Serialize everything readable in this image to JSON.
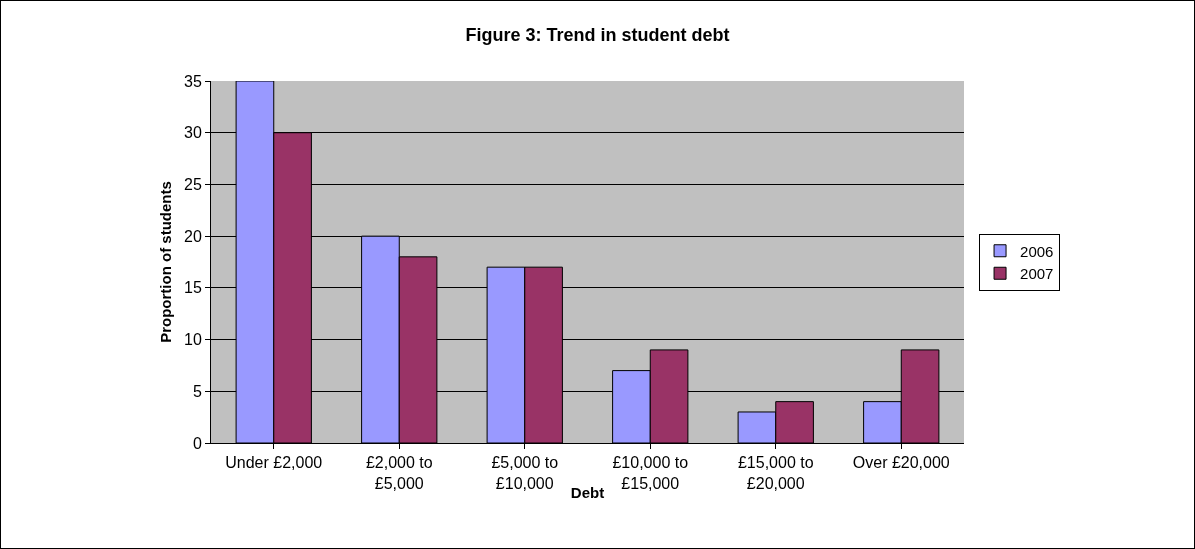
{
  "chart_data": {
    "type": "bar",
    "title": "Figure 3: Trend in student debt",
    "xlabel": "Debt",
    "ylabel": "Proportion of students",
    "categories": [
      "Under £2,000",
      "£2,000 to £5,000",
      "£5,000 to £10,000",
      "£10,000 to £15,000",
      "£15,000 to £20,000",
      "Over £20,000"
    ],
    "series": [
      {
        "name": "2006",
        "color": "#9999ff",
        "values": [
          35,
          20,
          17,
          7,
          3,
          4
        ]
      },
      {
        "name": "2007",
        "color": "#993366",
        "values": [
          30,
          18,
          17,
          9,
          4,
          9
        ]
      }
    ],
    "ylim": [
      0,
      35
    ],
    "yticks": [
      0,
      5,
      10,
      15,
      20,
      25,
      30,
      35
    ],
    "grid": "y",
    "legend": "right"
  }
}
